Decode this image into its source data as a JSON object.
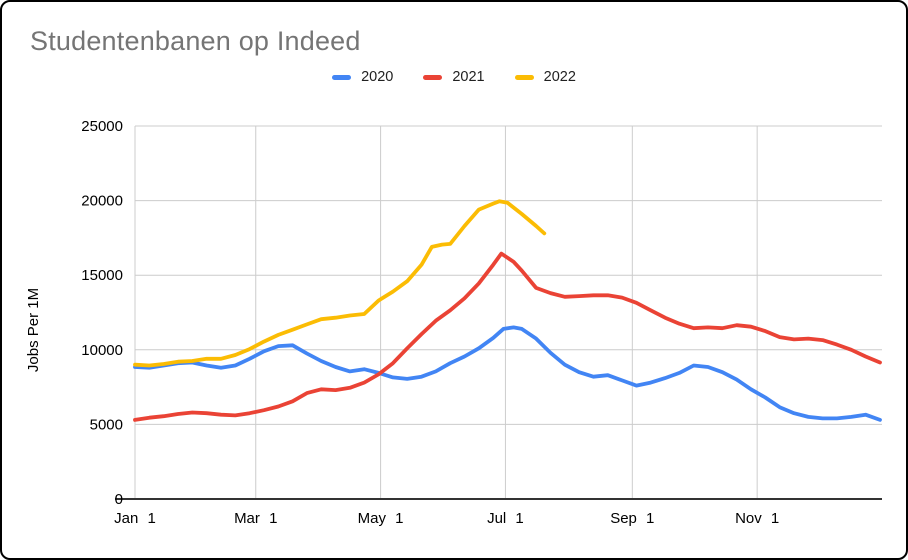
{
  "title": "Studentenbanen op Indeed",
  "chart_data": {
    "type": "line",
    "title": "Studentenbanen op Indeed",
    "xlabel": "",
    "ylabel": "Jobs Per 1M",
    "ylim": [
      0,
      25000
    ],
    "y_ticks": [
      0,
      5000,
      10000,
      15000,
      20000,
      25000
    ],
    "y_tick_labels": [
      "0",
      "5000",
      "10000",
      "15000",
      "20000",
      "25000"
    ],
    "x_unit": "day_of_year",
    "x_range_days": [
      1,
      366
    ],
    "x_tick_days": [
      1,
      60,
      121,
      182,
      244,
      305
    ],
    "x_tick_labels": [
      "Jan 1",
      "Mar 1",
      "May 1",
      "Jul 1",
      "Sep 1",
      "Nov 1"
    ],
    "grid": true,
    "gridline_color": "#cccccc",
    "axis_line_color": "#333333",
    "legend_position": "top-center",
    "series": [
      {
        "name": "2020",
        "color": "#4285F4",
        "points": [
          [
            1,
            8850
          ],
          [
            8,
            8800
          ],
          [
            15,
            8950
          ],
          [
            22,
            9100
          ],
          [
            29,
            9150
          ],
          [
            36,
            8950
          ],
          [
            43,
            8800
          ],
          [
            50,
            8950
          ],
          [
            57,
            9400
          ],
          [
            64,
            9900
          ],
          [
            71,
            10250
          ],
          [
            78,
            10300
          ],
          [
            85,
            9750
          ],
          [
            92,
            9250
          ],
          [
            99,
            8850
          ],
          [
            106,
            8550
          ],
          [
            113,
            8700
          ],
          [
            120,
            8450
          ],
          [
            127,
            8150
          ],
          [
            134,
            8050
          ],
          [
            141,
            8200
          ],
          [
            148,
            8550
          ],
          [
            155,
            9100
          ],
          [
            162,
            9550
          ],
          [
            169,
            10100
          ],
          [
            176,
            10800
          ],
          [
            181,
            11400
          ],
          [
            186,
            11500
          ],
          [
            190,
            11400
          ],
          [
            197,
            10750
          ],
          [
            204,
            9800
          ],
          [
            211,
            9000
          ],
          [
            218,
            8500
          ],
          [
            225,
            8200
          ],
          [
            232,
            8300
          ],
          [
            239,
            7950
          ],
          [
            246,
            7600
          ],
          [
            253,
            7800
          ],
          [
            260,
            8100
          ],
          [
            267,
            8450
          ],
          [
            274,
            8950
          ],
          [
            281,
            8850
          ],
          [
            288,
            8500
          ],
          [
            295,
            8000
          ],
          [
            302,
            7350
          ],
          [
            309,
            6800
          ],
          [
            316,
            6150
          ],
          [
            323,
            5750
          ],
          [
            330,
            5500
          ],
          [
            337,
            5400
          ],
          [
            344,
            5400
          ],
          [
            351,
            5500
          ],
          [
            358,
            5650
          ],
          [
            365,
            5300
          ]
        ]
      },
      {
        "name": "2021",
        "color": "#EA4335",
        "points": [
          [
            1,
            5300
          ],
          [
            8,
            5450
          ],
          [
            15,
            5550
          ],
          [
            22,
            5700
          ],
          [
            29,
            5800
          ],
          [
            36,
            5750
          ],
          [
            43,
            5650
          ],
          [
            50,
            5600
          ],
          [
            57,
            5750
          ],
          [
            64,
            5950
          ],
          [
            71,
            6200
          ],
          [
            78,
            6550
          ],
          [
            85,
            7100
          ],
          [
            92,
            7350
          ],
          [
            99,
            7300
          ],
          [
            106,
            7450
          ],
          [
            113,
            7800
          ],
          [
            120,
            8350
          ],
          [
            127,
            9100
          ],
          [
            134,
            10100
          ],
          [
            141,
            11050
          ],
          [
            148,
            11950
          ],
          [
            155,
            12650
          ],
          [
            162,
            13450
          ],
          [
            169,
            14450
          ],
          [
            176,
            15700
          ],
          [
            180,
            16450
          ],
          [
            186,
            15900
          ],
          [
            190,
            15300
          ],
          [
            197,
            14150
          ],
          [
            204,
            13800
          ],
          [
            211,
            13550
          ],
          [
            218,
            13600
          ],
          [
            225,
            13650
          ],
          [
            232,
            13650
          ],
          [
            239,
            13500
          ],
          [
            246,
            13150
          ],
          [
            253,
            12650
          ],
          [
            260,
            12150
          ],
          [
            267,
            11750
          ],
          [
            274,
            11450
          ],
          [
            281,
            11500
          ],
          [
            288,
            11450
          ],
          [
            295,
            11650
          ],
          [
            302,
            11550
          ],
          [
            309,
            11250
          ],
          [
            316,
            10850
          ],
          [
            323,
            10700
          ],
          [
            330,
            10750
          ],
          [
            337,
            10650
          ],
          [
            344,
            10350
          ],
          [
            351,
            10000
          ],
          [
            358,
            9550
          ],
          [
            365,
            9150
          ]
        ]
      },
      {
        "name": "2022",
        "color": "#FBBC04",
        "points": [
          [
            1,
            9000
          ],
          [
            8,
            8950
          ],
          [
            15,
            9050
          ],
          [
            22,
            9200
          ],
          [
            29,
            9250
          ],
          [
            36,
            9400
          ],
          [
            43,
            9400
          ],
          [
            50,
            9650
          ],
          [
            57,
            10050
          ],
          [
            64,
            10550
          ],
          [
            71,
            11000
          ],
          [
            78,
            11350
          ],
          [
            85,
            11700
          ],
          [
            92,
            12050
          ],
          [
            99,
            12150
          ],
          [
            106,
            12300
          ],
          [
            113,
            12400
          ],
          [
            120,
            13300
          ],
          [
            127,
            13900
          ],
          [
            134,
            14600
          ],
          [
            141,
            15700
          ],
          [
            146,
            16900
          ],
          [
            151,
            17050
          ],
          [
            155,
            17100
          ],
          [
            162,
            18300
          ],
          [
            169,
            19400
          ],
          [
            176,
            19800
          ],
          [
            179,
            19950
          ],
          [
            183,
            19850
          ],
          [
            190,
            19100
          ],
          [
            197,
            18300
          ],
          [
            201,
            17800
          ]
        ]
      }
    ]
  }
}
